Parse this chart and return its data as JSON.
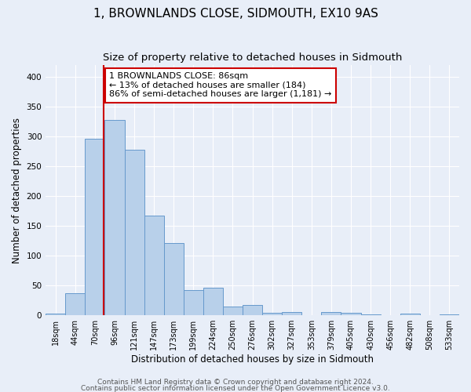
{
  "title": "1, BROWNLANDS CLOSE, SIDMOUTH, EX10 9AS",
  "subtitle": "Size of property relative to detached houses in Sidmouth",
  "xlabel": "Distribution of detached houses by size in Sidmouth",
  "ylabel": "Number of detached properties",
  "bin_labels": [
    "18sqm",
    "44sqm",
    "70sqm",
    "96sqm",
    "121sqm",
    "147sqm",
    "173sqm",
    "199sqm",
    "224sqm",
    "250sqm",
    "276sqm",
    "302sqm",
    "327sqm",
    "353sqm",
    "379sqm",
    "405sqm",
    "430sqm",
    "456sqm",
    "482sqm",
    "508sqm",
    "533sqm"
  ],
  "bar_heights": [
    3,
    37,
    297,
    328,
    278,
    168,
    122,
    42,
    46,
    15,
    17,
    4,
    5,
    0,
    6,
    4,
    2,
    0,
    3,
    0,
    1
  ],
  "bar_color": "#b8d0ea",
  "bar_edge_color": "#6699cc",
  "vline_color": "#cc0000",
  "annotation_text": "1 BROWNLANDS CLOSE: 86sqm\n← 13% of detached houses are smaller (184)\n86% of semi-detached houses are larger (1,181) →",
  "annotation_box_color": "#ffffff",
  "annotation_box_edge_color": "#cc0000",
  "ylim": [
    0,
    420
  ],
  "yticks": [
    0,
    50,
    100,
    150,
    200,
    250,
    300,
    350,
    400
  ],
  "footer_line1": "Contains HM Land Registry data © Crown copyright and database right 2024.",
  "footer_line2": "Contains public sector information licensed under the Open Government Licence v3.0.",
  "background_color": "#e8eef8",
  "grid_color": "#ffffff",
  "title_fontsize": 11,
  "subtitle_fontsize": 9.5,
  "axis_label_fontsize": 8.5,
  "tick_fontsize": 7,
  "annotation_fontsize": 8,
  "footer_fontsize": 6.5,
  "vline_xindex": 2.425
}
